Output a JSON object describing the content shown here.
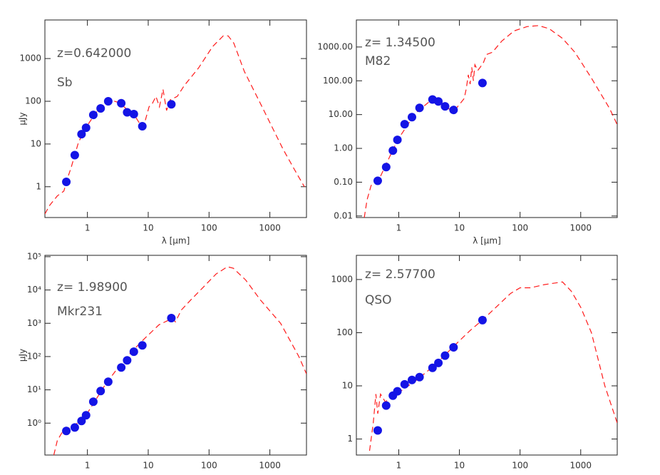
{
  "chart_data": [
    {
      "type": "scatter",
      "log_x": true,
      "log_y": true,
      "text": [
        "z=0.642000",
        "Sb"
      ],
      "xlabel": "λ [μm]",
      "ylabel": "μJy",
      "xlim": [
        0.2,
        4000
      ],
      "ylim": [
        0.19,
        8000
      ],
      "xticks": [
        1,
        10,
        100,
        1000
      ],
      "yticks": [
        1,
        10,
        100,
        1000
      ],
      "color": "#1414e6",
      "x": [
        0.45,
        0.62,
        0.8,
        0.95,
        1.25,
        1.65,
        2.2,
        3.6,
        4.5,
        5.8,
        8.0,
        24
      ],
      "values": [
        1.3,
        5.5,
        17,
        24,
        48,
        68,
        100,
        90,
        55,
        50,
        26,
        85
      ],
      "model_color": "#ff1a1a",
      "model_x": [
        0.2,
        0.24,
        0.32,
        0.41,
        0.47,
        0.54,
        0.71,
        0.92,
        1.38,
        2.06,
        2.36,
        3.08,
        4.0,
        6.0,
        7.9,
        9.0,
        10.3,
        11.7,
        13.4,
        15.3,
        17.5,
        20,
        22.9,
        30,
        39,
        67,
        114,
        171,
        206,
        255,
        380,
        745,
        1660,
        2840,
        3700
      ],
      "model_values": [
        0.23,
        0.37,
        0.61,
        0.79,
        1.58,
        2.8,
        10.8,
        23,
        54,
        96,
        108,
        96,
        74,
        46,
        25,
        37,
        74,
        89,
        130,
        74,
        191,
        61,
        108,
        130,
        232,
        600,
        1900,
        3400,
        3400,
        2300,
        500,
        74,
        7.4,
        1.9,
        1
      ]
    },
    {
      "type": "scatter",
      "log_x": true,
      "log_y": true,
      "text": [
        "z= 1.34500",
        "M82"
      ],
      "xlabel": "λ [μm]",
      "xlim": [
        0.2,
        4000
      ],
      "ylim": [
        0.009,
        6300
      ],
      "xticks": [
        1,
        10,
        100,
        1000
      ],
      "yticks": [
        {
          "value": 0.01,
          "label": "0.01"
        },
        {
          "value": 0.1,
          "label": "0.10"
        },
        {
          "value": 1,
          "label": "1.00"
        },
        {
          "value": 10,
          "label": "10.00"
        },
        {
          "value": 100,
          "label": "100.00"
        },
        {
          "value": 1000,
          "label": "1000.00"
        }
      ],
      "color": "#1414e6",
      "x": [
        0.45,
        0.62,
        0.8,
        0.95,
        1.25,
        1.65,
        2.2,
        3.6,
        4.5,
        5.8,
        8.0,
        24
      ],
      "values": [
        0.11,
        0.28,
        0.86,
        1.79,
        5.2,
        8.4,
        15.8,
        28,
        24.5,
        17.5,
        13.7,
        86
      ],
      "model_color": "#ff1a1a",
      "model_x": [
        0.27,
        0.3,
        0.35,
        0.42,
        0.5,
        0.6,
        0.8,
        1,
        1.5,
        2,
        3,
        3.6,
        5,
        7,
        8,
        10,
        12,
        13,
        14,
        15,
        16,
        17,
        18,
        20,
        22,
        25,
        28,
        35,
        50,
        80,
        130,
        200,
        300,
        500,
        800,
        1500,
        3000,
        4000
      ],
      "model_values": [
        0.009,
        0.03,
        0.08,
        0.1,
        0.15,
        0.3,
        0.9,
        2,
        6,
        12,
        22,
        28,
        22,
        14,
        12,
        20,
        30,
        60,
        150,
        80,
        250,
        100,
        300,
        200,
        250,
        350,
        600,
        700,
        1500,
        3000,
        4000,
        4300,
        3500,
        1800,
        700,
        120,
        15,
        5
      ]
    },
    {
      "type": "scatter",
      "log_x": true,
      "log_y": true,
      "text": [
        "z= 1.98900",
        "Mkr231"
      ],
      "ylabel": "μJy",
      "xlim": [
        0.2,
        4000
      ],
      "ylim": [
        0.11,
        110000
      ],
      "xticks": [
        1,
        10,
        100,
        1000
      ],
      "yticks": [
        {
          "value": 1,
          "label": "10⁰"
        },
        {
          "value": 10,
          "label": "10¹"
        },
        {
          "value": 100,
          "label": "10²"
        },
        {
          "value": 1000,
          "label": "10³"
        },
        {
          "value": 10000,
          "label": "10⁴"
        },
        {
          "value": 100000,
          "label": "10⁵"
        }
      ],
      "color": "#1414e6",
      "x": [
        0.45,
        0.62,
        0.8,
        0.95,
        1.25,
        1.65,
        2.2,
        3.6,
        4.5,
        5.8,
        8.0,
        24
      ],
      "values": [
        0.58,
        0.74,
        1.16,
        1.72,
        4.4,
        9.2,
        17.5,
        47,
        77,
        140,
        217,
        1430
      ],
      "model_color": "#ff1a1a",
      "model_x": [
        0.28,
        0.32,
        0.4,
        0.6,
        1,
        2,
        4,
        8,
        15,
        25,
        28,
        35,
        50,
        80,
        130,
        200,
        250,
        400,
        700,
        1500,
        3000,
        4000
      ],
      "model_values": [
        0.11,
        0.3,
        0.6,
        0.8,
        2,
        15,
        80,
        300,
        900,
        1400,
        1100,
        2500,
        5000,
        12000,
        30000,
        50000,
        45000,
        20000,
        5000,
        1000,
        100,
        30
      ]
    },
    {
      "type": "scatter",
      "log_x": true,
      "log_y": true,
      "text": [
        "z= 2.57700",
        "QSO"
      ],
      "xlim": [
        0.2,
        4000
      ],
      "ylim": [
        0.5,
        2850
      ],
      "xticks": [
        1,
        10,
        100,
        1000
      ],
      "yticks": [
        1,
        10,
        100,
        1000
      ],
      "color": "#1414e6",
      "x": [
        0.45,
        0.62,
        0.8,
        0.95,
        1.25,
        1.65,
        2.2,
        3.6,
        4.5,
        5.8,
        8.0,
        24
      ],
      "values": [
        1.45,
        4.26,
        6.55,
        7.9,
        10.7,
        12.9,
        14.6,
        21.8,
        27,
        37,
        53,
        172
      ],
      "model_color": "#ff1a1a",
      "model_x": [
        0.33,
        0.38,
        0.42,
        0.45,
        0.5,
        0.6,
        0.8,
        1,
        2,
        4,
        8,
        15,
        25,
        40,
        70,
        100,
        150,
        250,
        500,
        700,
        1000,
        1500,
        2500,
        4000
      ],
      "model_values": [
        0.6,
        2,
        7,
        3,
        7,
        5,
        6.5,
        7.5,
        13,
        25,
        55,
        110,
        180,
        300,
        550,
        700,
        700,
        800,
        900,
        600,
        300,
        100,
        10,
        2
      ]
    }
  ]
}
